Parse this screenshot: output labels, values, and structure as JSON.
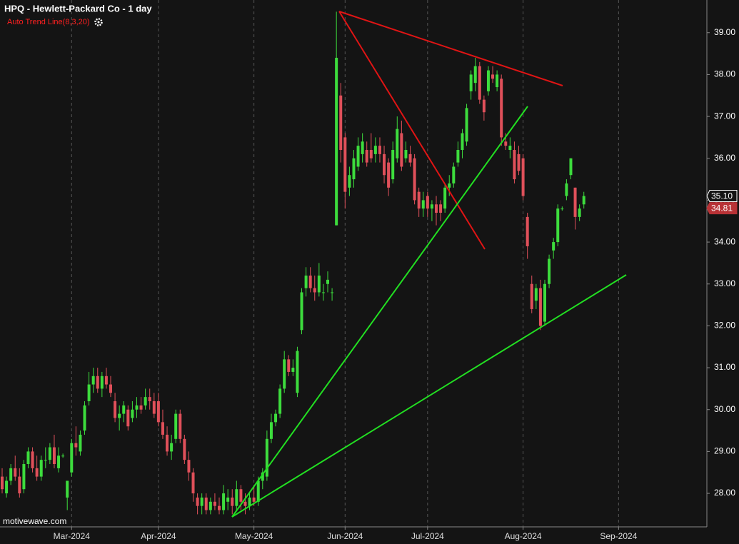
{
  "chart_data": {
    "type": "candlestick",
    "title": "HPQ - Hewlett-Packard Co - 1 day",
    "subtitle": "Auto Trend Line(8,3,20)",
    "watermark": "motivewave.com",
    "up_color": "#3ddc3d",
    "down_color": "#e0505a",
    "categories": [
      null,
      null,
      null,
      null,
      null,
      null,
      null,
      null,
      null,
      null,
      null,
      null,
      null,
      null,
      null,
      null,
      "Mar-2024",
      null,
      null,
      null,
      null,
      null,
      null,
      null,
      null,
      null,
      null,
      null,
      null,
      null,
      null,
      null,
      null,
      null,
      null,
      null,
      "Apr-2024",
      null,
      null,
      null,
      null,
      null,
      null,
      null,
      null,
      null,
      null,
      null,
      null,
      null,
      null,
      null,
      null,
      null,
      null,
      null,
      null,
      null,
      "May-2024",
      null,
      null,
      null,
      null,
      null,
      null,
      null,
      null,
      null,
      null,
      null,
      null,
      null,
      null,
      null,
      null,
      null,
      null,
      null,
      null,
      "Jun-2024",
      null,
      null,
      null,
      null,
      null,
      null,
      null,
      null,
      null,
      null,
      null,
      null,
      null,
      null,
      null,
      null,
      null,
      null,
      "Jul-2024",
      null,
      null,
      null,
      null,
      null,
      null,
      null,
      null,
      null,
      null,
      null,
      null,
      null,
      null,
      null,
      null,
      null,
      null,
      null,
      null,
      null,
      "Aug-2024",
      null,
      null,
      null,
      null,
      null,
      null,
      null,
      null,
      null,
      null,
      null,
      null,
      null,
      null,
      null,
      null,
      null,
      null,
      null,
      null,
      null,
      "Sep-2024"
    ],
    "open": [
      28.4,
      28.0,
      28.3,
      28.6,
      28.4,
      28.1,
      28.7,
      29.0,
      28.6,
      28.4,
      28.8,
      28.8,
      29.1,
      28.6,
      28.9,
      27.9,
      28.5,
      29.2,
      29.0,
      29.5,
      30.2,
      30.6,
      30.8,
      30.5,
      30.8,
      30.6,
      30.2,
      29.8,
      29.9,
      30.0,
      29.8,
      30.0,
      30.1,
      30.1,
      30.3,
      30.2,
      30.2,
      29.7,
      29.4,
      29.0,
      29.3,
      29.9,
      29.3,
      28.8,
      28.5,
      27.9,
      27.7,
      27.9,
      27.6,
      27.8,
      27.7,
      27.6,
      27.8,
      27.9,
      27.7,
      28.1,
      27.8,
      27.7,
      27.9,
      27.8,
      28.3,
      28.4,
      29.3,
      29.7,
      29.9,
      30.5,
      31.2,
      30.9,
      30.4,
      31.9,
      32.9,
      33.2,
      32.9,
      32.8,
      32.8,
      33.0,
      32.8,
      34.4,
      37.5,
      36.5,
      35.3,
      35.5,
      35.8,
      36.1,
      36.2,
      36.2,
      36.1,
      36.3,
      36.1,
      35.9,
      35.5,
      36.0,
      36.6,
      36.0,
      36.1,
      36.0,
      35.2,
      34.8,
      35.1,
      34.8,
      34.9,
      34.9,
      34.8,
      35.3,
      35.4,
      35.9,
      36.2,
      36.4,
      37.6,
      37.8,
      38.2,
      37.4,
      37.6,
      38.0,
      37.7,
      37.9,
      36.4,
      36.2,
      36.2,
      36.1,
      36.0,
      34.6,
      33.0,
      32.6,
      32.9,
      32.1,
      33.0,
      33.8,
      34.0,
      34.8,
      35.1,
      35.6,
      35.3,
      34.6,
      34.9,
      null,
      null,
      null,
      null,
      null,
      null,
      null,
      null
    ],
    "high": [
      28.6,
      28.4,
      28.7,
      28.9,
      28.6,
      28.8,
      29.1,
      29.1,
      28.9,
      28.9,
      29.1,
      29.2,
      29.4,
      29.1,
      28.95,
      28.3,
      29.3,
      29.6,
      29.5,
      30.2,
      30.9,
      31.0,
      31.0,
      30.9,
      31.0,
      30.8,
      30.4,
      30.1,
      30.2,
      30.1,
      30.2,
      30.3,
      30.3,
      30.5,
      30.5,
      30.4,
      30.4,
      30.0,
      29.6,
      29.4,
      30.0,
      30.0,
      29.4,
      29.0,
      28.6,
      28.0,
      28.0,
      28.0,
      27.9,
      28.0,
      27.9,
      28.2,
      28.1,
      28.1,
      28.3,
      28.2,
      28.0,
      28.0,
      28.2,
      28.4,
      28.6,
      29.5,
      29.9,
      30.0,
      30.6,
      31.4,
      31.3,
      31.2,
      31.5,
      32.9,
      33.4,
      33.4,
      33.2,
      33.5,
      33.0,
      33.3,
      32.9,
      39.5,
      37.8,
      36.6,
      35.8,
      36.2,
      36.5,
      36.6,
      36.4,
      36.6,
      36.5,
      36.5,
      36.3,
      36.0,
      36.4,
      37.0,
      36.9,
      36.4,
      36.3,
      36.1,
      35.3,
      35.2,
      35.2,
      35.0,
      35.1,
      35.0,
      35.4,
      35.6,
      35.9,
      36.4,
      36.7,
      37.3,
      38.1,
      38.4,
      38.3,
      37.5,
      38.2,
      38.2,
      38.1,
      38.0,
      36.6,
      36.5,
      36.4,
      36.3,
      36.1,
      34.7,
      33.2,
      33.0,
      33.1,
      33.1,
      33.7,
      34.1,
      34.9,
      34.85,
      35.5,
      36.0,
      35.3,
      34.9,
      35.2,
      null,
      null,
      null,
      null,
      null,
      null,
      null,
      null
    ],
    "low": [
      28.0,
      27.9,
      28.2,
      28.3,
      27.9,
      28.0,
      28.6,
      28.5,
      28.3,
      28.3,
      28.6,
      28.7,
      28.6,
      28.5,
      28.85,
      27.6,
      28.4,
      28.9,
      28.9,
      29.4,
      30.1,
      30.4,
      30.4,
      30.3,
      30.5,
      30.3,
      29.7,
      29.5,
      29.7,
      29.5,
      29.7,
      29.8,
      29.9,
      30.0,
      30.0,
      29.8,
      29.6,
      29.3,
      28.9,
      28.8,
      29.2,
      29.2,
      28.7,
      28.3,
      27.8,
      27.5,
      27.5,
      27.5,
      27.5,
      27.6,
      27.5,
      27.5,
      27.6,
      27.5,
      27.6,
      27.6,
      27.5,
      27.6,
      27.7,
      27.7,
      28.1,
      28.3,
      29.2,
      29.6,
      29.8,
      30.4,
      30.8,
      30.8,
      30.3,
      31.8,
      32.7,
      32.8,
      32.6,
      32.7,
      32.6,
      32.8,
      32.6,
      34.4,
      35.9,
      34.8,
      35.1,
      35.3,
      35.7,
      35.9,
      35.8,
      35.9,
      35.9,
      35.9,
      35.4,
      35.1,
      35.4,
      35.9,
      35.7,
      35.9,
      35.8,
      34.9,
      34.6,
      34.6,
      34.6,
      34.5,
      34.4,
      34.5,
      34.7,
      35.1,
      35.3,
      35.8,
      36.0,
      36.3,
      37.4,
      37.6,
      37.3,
      36.9,
      37.5,
      37.8,
      37.6,
      36.3,
      36.2,
      36.0,
      35.4,
      35.6,
      35.0,
      33.6,
      32.3,
      32.4,
      31.9,
      32.0,
      32.9,
      33.6,
      33.9,
      34.75,
      35.0,
      35.5,
      34.3,
      34.5,
      34.8,
      null,
      null,
      null,
      null,
      null,
      null,
      null,
      null
    ],
    "close": [
      28.1,
      28.3,
      28.6,
      28.4,
      28.0,
      28.7,
      29.0,
      28.6,
      28.4,
      28.8,
      28.8,
      29.1,
      28.7,
      28.9,
      28.9,
      28.3,
      29.2,
      29.1,
      29.4,
      30.1,
      30.6,
      30.8,
      30.5,
      30.8,
      30.6,
      30.4,
      29.8,
      29.9,
      30.1,
      29.6,
      30.0,
      30.1,
      30.0,
      30.3,
      30.2,
      29.9,
      29.7,
      29.4,
      29.0,
      29.2,
      29.9,
      29.3,
      28.8,
      28.5,
      28.0,
      27.7,
      27.9,
      27.6,
      27.8,
      27.7,
      27.6,
      28.0,
      27.9,
      27.7,
      28.1,
      27.8,
      27.7,
      27.9,
      27.8,
      28.3,
      28.5,
      29.3,
      29.7,
      29.9,
      30.5,
      31.2,
      30.9,
      31.0,
      31.4,
      32.8,
      33.2,
      32.9,
      32.8,
      33.2,
      32.8,
      33.1,
      32.8,
      38.4,
      36.2,
      35.2,
      35.6,
      36.0,
      36.3,
      36.4,
      35.9,
      36.0,
      36.3,
      36.1,
      35.6,
      35.3,
      36.2,
      36.7,
      35.8,
      36.2,
      35.9,
      35.0,
      34.8,
      35.0,
      34.8,
      34.9,
      34.7,
      34.7,
      35.3,
      35.4,
      35.8,
      36.2,
      36.6,
      37.2,
      38.0,
      38.2,
      37.4,
      37.1,
      38.1,
      37.9,
      38.0,
      36.5,
      36.3,
      36.3,
      35.5,
      35.7,
      35.1,
      33.9,
      32.4,
      32.9,
      32.0,
      33.0,
      33.6,
      34.0,
      34.8,
      34.8,
      35.4,
      36.0,
      34.6,
      34.8,
      35.1,
      null,
      null,
      null,
      null,
      null,
      null,
      null,
      null
    ],
    "ylim": [
      27.2,
      39.78
    ],
    "yticks": [
      {
        "value": 28,
        "label": "28.00"
      },
      {
        "value": 29,
        "label": "29.00"
      },
      {
        "value": 30,
        "label": "30.00"
      },
      {
        "value": 31,
        "label": "31.00"
      },
      {
        "value": 32,
        "label": "32.00"
      },
      {
        "value": 33,
        "label": "33.00"
      },
      {
        "value": 34,
        "label": "34.00"
      },
      {
        "value": 35,
        "label": "35.00"
      },
      {
        "value": 36,
        "label": "36.00"
      },
      {
        "value": 37,
        "label": "37.00"
      },
      {
        "value": 38,
        "label": "38.00"
      },
      {
        "value": 39,
        "label": "39.00"
      }
    ],
    "price_markers": [
      {
        "value": 35.1,
        "label": "35.10",
        "color": "#ffffff"
      },
      {
        "value": 34.81,
        "label": "34.81",
        "color": "#b83236"
      }
    ],
    "grid": true
  }
}
